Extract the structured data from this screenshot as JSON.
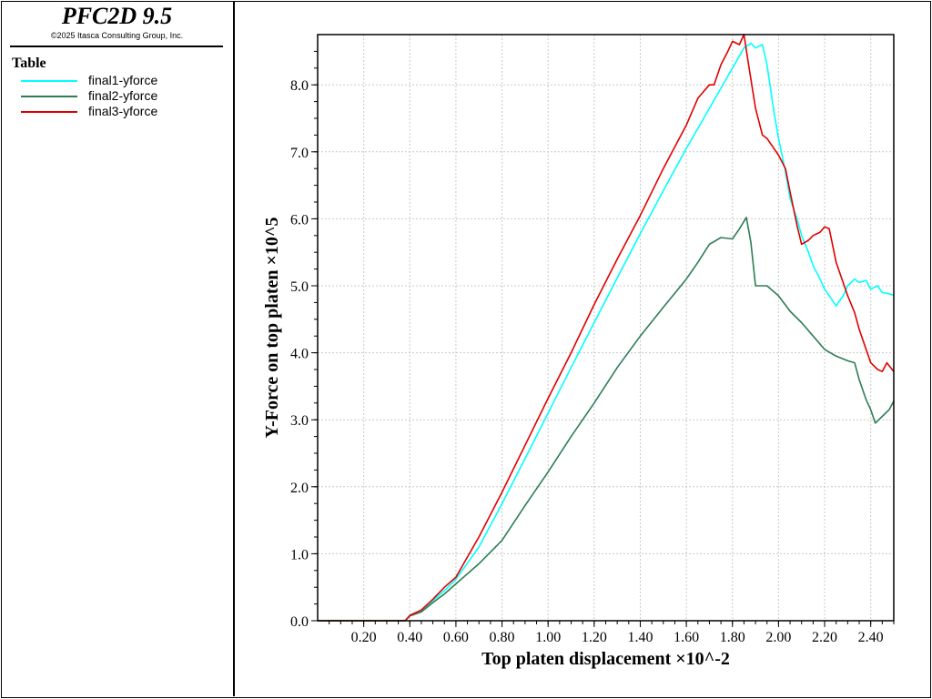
{
  "app": {
    "title": "PFC2D 9.5",
    "copyright": "©2025 Itasca Consulting Group, Inc."
  },
  "legend": {
    "heading": "Table",
    "items": [
      {
        "label": "final1-yforce",
        "color": "#00ffff"
      },
      {
        "label": "final2-yforce",
        "color": "#2e7d55"
      },
      {
        "label": "final3-yforce",
        "color": "#e00000"
      }
    ]
  },
  "chart_data": {
    "type": "line",
    "title": "",
    "xlabel": "Top platen displacement ×10^-2",
    "ylabel": "Y-Force on top platen ×10^5",
    "xlim": [
      0.0,
      2.5
    ],
    "ylim": [
      0.0,
      8.75
    ],
    "x_ticks": [
      0.2,
      0.4,
      0.6,
      0.8,
      1.0,
      1.2,
      1.4,
      1.6,
      1.8,
      2.0,
      2.2,
      2.4
    ],
    "x_tick_labels": [
      "0.20",
      "0.40",
      "0.60",
      "0.80",
      "1.00",
      "1.20",
      "1.40",
      "1.60",
      "1.80",
      "2.00",
      "2.20",
      "2.40"
    ],
    "y_ticks": [
      0,
      1,
      2,
      3,
      4,
      5,
      6,
      7,
      8
    ],
    "y_tick_labels": [
      "0.0",
      "1.0",
      "2.0",
      "3.0",
      "4.0",
      "5.0",
      "6.0",
      "7.0",
      "8.0"
    ],
    "grid": true,
    "series": [
      {
        "name": "final1-yforce",
        "color": "#00ffff",
        "x": [
          0.0,
          0.38,
          0.4,
          0.45,
          0.5,
          0.55,
          0.6,
          0.7,
          0.8,
          0.9,
          1.0,
          1.1,
          1.2,
          1.3,
          1.4,
          1.5,
          1.6,
          1.7,
          1.75,
          1.8,
          1.85,
          1.88,
          1.9,
          1.93,
          1.95,
          1.98,
          2.0,
          2.03,
          2.05,
          2.08,
          2.1,
          2.13,
          2.15,
          2.18,
          2.2,
          2.23,
          2.25,
          2.28,
          2.3,
          2.33,
          2.35,
          2.38,
          2.4,
          2.43,
          2.45,
          2.48,
          2.5
        ],
        "y": [
          0.0,
          0.0,
          0.08,
          0.15,
          0.3,
          0.45,
          0.62,
          1.1,
          1.75,
          2.42,
          3.1,
          3.78,
          4.45,
          5.12,
          5.78,
          6.42,
          7.05,
          7.65,
          7.95,
          8.25,
          8.55,
          8.62,
          8.55,
          8.6,
          8.3,
          7.6,
          7.2,
          6.7,
          6.3,
          6.0,
          5.75,
          5.5,
          5.3,
          5.1,
          4.95,
          4.8,
          4.7,
          4.85,
          5.0,
          5.1,
          5.05,
          5.08,
          4.95,
          5.0,
          4.9,
          4.88,
          4.86
        ]
      },
      {
        "name": "final2-yforce",
        "color": "#2e7d55",
        "x": [
          0.0,
          0.38,
          0.4,
          0.45,
          0.5,
          0.55,
          0.6,
          0.7,
          0.8,
          0.9,
          1.0,
          1.1,
          1.2,
          1.3,
          1.4,
          1.5,
          1.6,
          1.65,
          1.7,
          1.75,
          1.8,
          1.83,
          1.86,
          1.88,
          1.9,
          1.95,
          2.0,
          2.05,
          2.1,
          2.15,
          2.2,
          2.25,
          2.3,
          2.33,
          2.35,
          2.38,
          2.4,
          2.42,
          2.45,
          2.48,
          2.5
        ],
        "y": [
          0.0,
          0.0,
          0.07,
          0.13,
          0.27,
          0.4,
          0.55,
          0.85,
          1.2,
          1.72,
          2.22,
          2.75,
          3.25,
          3.78,
          4.25,
          4.68,
          5.1,
          5.35,
          5.62,
          5.72,
          5.7,
          5.85,
          6.02,
          5.65,
          5.0,
          5.0,
          4.85,
          4.62,
          4.45,
          4.25,
          4.05,
          3.95,
          3.88,
          3.85,
          3.6,
          3.3,
          3.15,
          2.95,
          3.05,
          3.15,
          3.28
        ]
      },
      {
        "name": "final3-yforce",
        "color": "#e00000",
        "x": [
          0.0,
          0.38,
          0.4,
          0.45,
          0.5,
          0.55,
          0.6,
          0.7,
          0.8,
          0.9,
          1.0,
          1.1,
          1.2,
          1.3,
          1.4,
          1.5,
          1.6,
          1.65,
          1.7,
          1.72,
          1.75,
          1.78,
          1.8,
          1.83,
          1.85,
          1.87,
          1.9,
          1.93,
          1.95,
          1.98,
          2.0,
          2.03,
          2.05,
          2.08,
          2.1,
          2.13,
          2.15,
          2.18,
          2.2,
          2.22,
          2.25,
          2.28,
          2.3,
          2.33,
          2.35,
          2.38,
          2.4,
          2.43,
          2.45,
          2.47,
          2.5
        ],
        "y": [
          0.0,
          0.0,
          0.08,
          0.16,
          0.32,
          0.5,
          0.65,
          1.25,
          1.92,
          2.62,
          3.32,
          4.0,
          4.72,
          5.4,
          6.05,
          6.75,
          7.4,
          7.8,
          8.0,
          8.0,
          8.3,
          8.5,
          8.65,
          8.6,
          8.75,
          8.3,
          7.65,
          7.25,
          7.2,
          7.05,
          6.95,
          6.75,
          6.4,
          5.9,
          5.62,
          5.68,
          5.75,
          5.8,
          5.88,
          5.85,
          5.35,
          5.05,
          4.85,
          4.6,
          4.35,
          4.05,
          3.85,
          3.75,
          3.72,
          3.85,
          3.72
        ]
      }
    ]
  }
}
